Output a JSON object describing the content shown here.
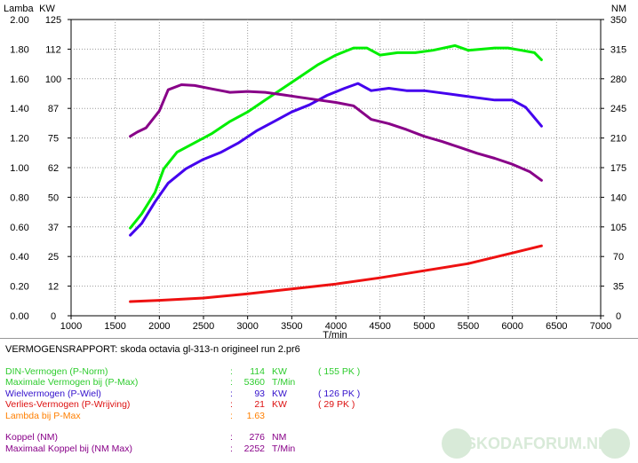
{
  "chart_data": {
    "type": "line",
    "x_axis": {
      "label": "T/min",
      "min": 1000,
      "max": 7000,
      "ticks": [
        1000,
        1500,
        2000,
        2500,
        3000,
        3500,
        4000,
        4500,
        5000,
        5500,
        6000,
        6500,
        7000
      ]
    },
    "left_axes": [
      {
        "label": "Lamba",
        "min": 0,
        "max": 2.0,
        "tick_labels": [
          "0.00",
          "0.20",
          "0.40",
          "0.60",
          "0.80",
          "1.00",
          "1.20",
          "1.40",
          "1.60",
          "1.80",
          "2.00"
        ]
      },
      {
        "label": "KW",
        "min": 0,
        "max": 125,
        "tick_labels": [
          "0",
          "12",
          "25",
          "37",
          "50",
          "62",
          "75",
          "87",
          "100",
          "112",
          "125"
        ]
      }
    ],
    "right_axis": {
      "label": "NM",
      "min": 0,
      "max": 350,
      "tick_labels": [
        "0",
        "35",
        "70",
        "105",
        "140",
        "175",
        "210",
        "245",
        "280",
        "315",
        "350"
      ]
    },
    "grid": "vertical-and-horizontal-dotted",
    "series": [
      {
        "color": "#00ee00",
        "axis": "KW",
        "points": [
          [
            1670,
            37
          ],
          [
            1800,
            43
          ],
          [
            1950,
            52
          ],
          [
            2050,
            62
          ],
          [
            2200,
            69
          ],
          [
            2400,
            73
          ],
          [
            2600,
            77
          ],
          [
            2800,
            82
          ],
          [
            3000,
            86
          ],
          [
            3200,
            91
          ],
          [
            3400,
            96
          ],
          [
            3600,
            101
          ],
          [
            3800,
            106
          ],
          [
            4000,
            110
          ],
          [
            4200,
            113
          ],
          [
            4350,
            113
          ],
          [
            4500,
            110
          ],
          [
            4700,
            111
          ],
          [
            4900,
            111
          ],
          [
            5100,
            112
          ],
          [
            5350,
            114
          ],
          [
            5500,
            112
          ],
          [
            5800,
            113
          ],
          [
            5950,
            113
          ],
          [
            6100,
            112
          ],
          [
            6250,
            111
          ],
          [
            6330,
            108
          ]
        ]
      },
      {
        "color": "#4400ee",
        "axis": "KW",
        "points": [
          [
            1670,
            34
          ],
          [
            1800,
            39
          ],
          [
            1950,
            48
          ],
          [
            2100,
            56
          ],
          [
            2300,
            62
          ],
          [
            2500,
            66
          ],
          [
            2700,
            69
          ],
          [
            2900,
            73
          ],
          [
            3100,
            78
          ],
          [
            3300,
            82
          ],
          [
            3500,
            86
          ],
          [
            3700,
            89
          ],
          [
            3900,
            93
          ],
          [
            4100,
            96
          ],
          [
            4250,
            98
          ],
          [
            4400,
            95
          ],
          [
            4600,
            96
          ],
          [
            4800,
            95
          ],
          [
            5000,
            95
          ],
          [
            5200,
            94
          ],
          [
            5400,
            93
          ],
          [
            5600,
            92
          ],
          [
            5800,
            91
          ],
          [
            6000,
            91
          ],
          [
            6150,
            88
          ],
          [
            6330,
            80
          ]
        ]
      },
      {
        "color": "#880088",
        "axis": "NM",
        "points": [
          [
            1670,
            212
          ],
          [
            1750,
            217
          ],
          [
            1850,
            222
          ],
          [
            2000,
            242
          ],
          [
            2100,
            267
          ],
          [
            2250,
            273
          ],
          [
            2400,
            272
          ],
          [
            2600,
            268
          ],
          [
            2800,
            264
          ],
          [
            3000,
            265
          ],
          [
            3200,
            264
          ],
          [
            3400,
            261
          ],
          [
            3600,
            258
          ],
          [
            3800,
            255
          ],
          [
            4000,
            252
          ],
          [
            4200,
            248
          ],
          [
            4400,
            232
          ],
          [
            4600,
            227
          ],
          [
            4800,
            220
          ],
          [
            5000,
            212
          ],
          [
            5200,
            206
          ],
          [
            5400,
            199
          ],
          [
            5600,
            192
          ],
          [
            5800,
            186
          ],
          [
            6000,
            179
          ],
          [
            6200,
            170
          ],
          [
            6330,
            160
          ]
        ]
      },
      {
        "color": "#ee1111",
        "axis": "KW",
        "points": [
          [
            1670,
            6
          ],
          [
            2000,
            6.5
          ],
          [
            2500,
            7.5
          ],
          [
            3000,
            9.3
          ],
          [
            3500,
            11.3
          ],
          [
            4000,
            13.4
          ],
          [
            4500,
            16
          ],
          [
            5000,
            19
          ],
          [
            5500,
            22
          ],
          [
            6000,
            26.5
          ],
          [
            6330,
            29.5
          ]
        ]
      }
    ]
  },
  "report": {
    "title": "VERMOGENSRAPPORT: skoda octavia gl-313-n origineel run 2.pr6",
    "rows": [
      {
        "label": "DIN-Vermogen (P-Norm)",
        "colon": ":",
        "value": "114",
        "unit": "KW",
        "extra": "( 155 PK )",
        "color": "#2ecc2e"
      },
      {
        "label": "Maximale Vermogen bij (P-Max)",
        "colon": ":",
        "value": "5360",
        "unit": "T/Min",
        "extra": "",
        "color": "#2ecc2e"
      },
      {
        "label": "Wielvermogen (P-Wiel)",
        "colon": ":",
        "value": "93",
        "unit": "KW",
        "extra": "( 126 PK )",
        "color": "#3311cc"
      },
      {
        "label": "Verlies-Vermogen (P-Wrijving)",
        "colon": ":",
        "value": "21",
        "unit": "KW",
        "extra": "( 29 PK )",
        "color": "#dd1111"
      },
      {
        "label": "Lambda bij P-Max",
        "colon": ":",
        "value": "1.63",
        "unit": "",
        "extra": "",
        "color": "#ff7f00"
      },
      {
        "label": "Koppel (NM)",
        "colon": ":",
        "value": "276",
        "unit": "NM",
        "extra": "",
        "color": "#880088"
      },
      {
        "label": "Maximaal Koppel bij (NM Max)",
        "colon": ":",
        "value": "2252",
        "unit": "T/Min",
        "extra": "",
        "color": "#880088"
      }
    ]
  },
  "watermark": {
    "text": "SKODAFORUM.NL",
    "color": "#d8ead8"
  }
}
